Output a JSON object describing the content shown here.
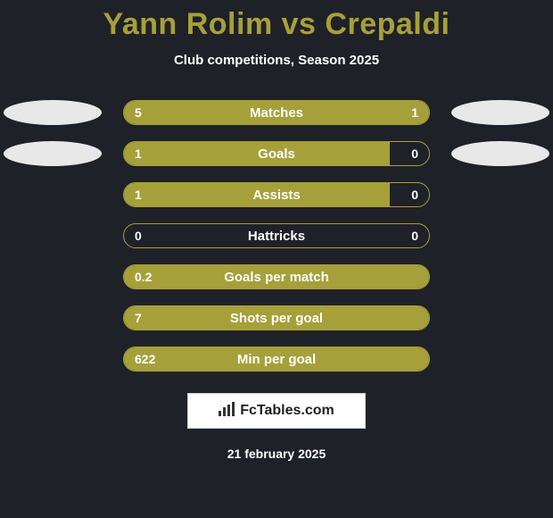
{
  "title_vs": "vs",
  "player1_name": "Yann Rolim",
  "player2_name": "Crepaldi",
  "subtitle": "Club competitions, Season 2025",
  "colors": {
    "background": "#1f2128",
    "accent": "#a6a03a",
    "text": "#ffffff",
    "oval": "#e8e8e8",
    "watermark_bg": "#ffffff"
  },
  "rows": [
    {
      "label": "Matches",
      "left_val": "5",
      "right_val": "1",
      "left_pct": 81,
      "right_pct": 19,
      "show_ovals": true
    },
    {
      "label": "Goals",
      "left_val": "1",
      "right_val": "0",
      "left_pct": 87,
      "right_pct": 0,
      "show_ovals": true
    },
    {
      "label": "Assists",
      "left_val": "1",
      "right_val": "0",
      "left_pct": 87,
      "right_pct": 0,
      "show_ovals": false
    },
    {
      "label": "Hattricks",
      "left_val": "0",
      "right_val": "0",
      "left_pct": 0,
      "right_pct": 0,
      "show_ovals": false
    },
    {
      "label": "Goals per match",
      "left_val": "0.2",
      "right_val": "",
      "left_pct": 100,
      "right_pct": 0,
      "show_ovals": false
    },
    {
      "label": "Shots per goal",
      "left_val": "7",
      "right_val": "",
      "left_pct": 100,
      "right_pct": 0,
      "show_ovals": false
    },
    {
      "label": "Min per goal",
      "left_val": "622",
      "right_val": "",
      "left_pct": 100,
      "right_pct": 0,
      "show_ovals": false
    }
  ],
  "watermark": "FcTables.com",
  "footer_date": "21 february 2025"
}
